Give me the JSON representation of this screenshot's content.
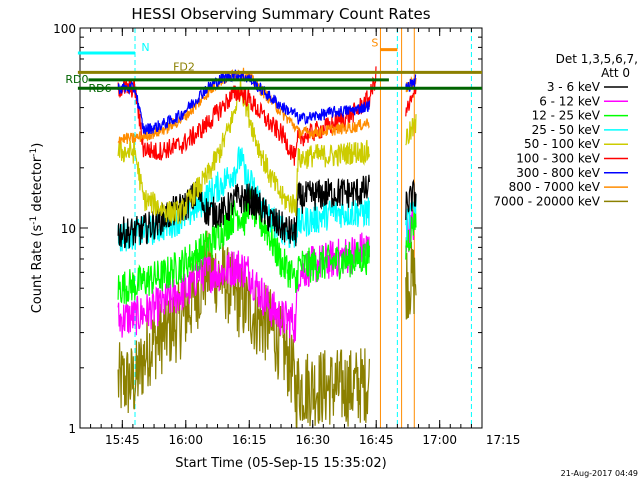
{
  "chart_data": {
    "type": "line",
    "title": "HESSI Observing Summary Count Rates",
    "xlabel": "Start Time (05-Sep-15 15:35:02)",
    "ylabel_main": "Count Rate (s",
    "ylabel_sup1": "-1",
    "ylabel_mid": " detector",
    "ylabel_sup2": "-1",
    "ylabel_end": ")",
    "ylog": true,
    "ylim": [
      1,
      100
    ],
    "xlim_minutes": [
      0,
      95
    ],
    "x_ticks": [
      {
        "label": "15:45",
        "min": 10
      },
      {
        "label": "16:00",
        "min": 25
      },
      {
        "label": "16:15",
        "min": 40
      },
      {
        "label": "16:30",
        "min": 55
      },
      {
        "label": "16:45",
        "min": 70
      },
      {
        "label": "17:00",
        "min": 85
      },
      {
        "label": "17:15",
        "min": 100
      }
    ],
    "y_ticks": [
      {
        "label": "1",
        "value": 1
      },
      {
        "label": "10",
        "value": 10
      },
      {
        "label": "100",
        "value": 100
      }
    ],
    "legend": {
      "header1": "Det 1,3,5,6,7,",
      "header2": "Att 0",
      "placement": "right",
      "entries": [
        {
          "name": "3 - 6 keV",
          "color": "#000000"
        },
        {
          "name": "6 - 12 keV",
          "color": "#ff00ff"
        },
        {
          "name": "12 - 25 keV",
          "color": "#00ff00"
        },
        {
          "name": "25 - 50 keV",
          "color": "#00ffff"
        },
        {
          "name": "50 - 100 keV",
          "color": "#cccc00"
        },
        {
          "name": "100 - 300 keV",
          "color": "#ff0000"
        },
        {
          "name": "300 - 800 keV",
          "color": "#0000ff"
        },
        {
          "name": "800 - 7000 keV",
          "color": "#ff8c00"
        },
        {
          "name": "7000 - 20000 keV",
          "color": "#8b8000"
        }
      ]
    },
    "flags": [
      {
        "label": "N",
        "color": "#00ffff",
        "x0": -0.5,
        "x1": 13,
        "value": 75
      },
      {
        "label": "FD2",
        "color": "#8b8000",
        "x0": -0.5,
        "x1": 95,
        "value": 60
      },
      {
        "label": "RD0",
        "color": "#006400",
        "x0": 2,
        "x1": 73,
        "value": 55
      },
      {
        "label": "RD6",
        "color": "#006400",
        "x0": -0.5,
        "x1": 95,
        "value": 50
      },
      {
        "label": "S",
        "color": "#ff8c00",
        "x0": 71,
        "x1": 75,
        "value": 78
      }
    ],
    "series": [
      {
        "name": "3 - 6 keV",
        "color": "#000000",
        "seg1": [
          [
            9,
            9.5
          ],
          [
            13,
            9.5
          ],
          [
            16,
            10
          ],
          [
            19,
            11
          ],
          [
            22,
            12
          ],
          [
            25,
            13
          ],
          [
            28,
            15
          ],
          [
            30,
            12
          ],
          [
            34,
            12
          ],
          [
            37,
            14
          ],
          [
            40,
            14
          ],
          [
            42,
            13
          ],
          [
            45,
            11
          ],
          [
            48,
            10
          ],
          [
            50,
            9.5
          ],
          [
            51,
            9.5
          ],
          [
            51.5,
            14
          ],
          [
            55,
            14.5
          ],
          [
            60,
            15
          ],
          [
            65,
            15
          ],
          [
            68.5,
            15.5
          ]
        ],
        "seg2": [
          [
            77,
            13
          ],
          [
            79.5,
            15
          ]
        ],
        "noise": 0.08
      },
      {
        "name": "6 - 12 keV",
        "color": "#ff00ff",
        "seg1": [
          [
            9,
            3.5
          ],
          [
            13,
            3.6
          ],
          [
            18,
            4
          ],
          [
            22,
            4.5
          ],
          [
            26,
            5
          ],
          [
            28,
            6
          ],
          [
            30,
            6
          ],
          [
            34,
            6
          ],
          [
            37,
            6.5
          ],
          [
            40,
            6
          ],
          [
            42,
            5
          ],
          [
            45,
            4
          ],
          [
            48,
            3.5
          ],
          [
            50,
            3.5
          ],
          [
            51,
            3.2
          ],
          [
            51.5,
            6
          ],
          [
            55,
            6.5
          ],
          [
            60,
            7
          ],
          [
            65,
            7.5
          ],
          [
            68.5,
            8
          ]
        ],
        "seg2": [
          [
            77,
            9
          ],
          [
            79.5,
            11
          ]
        ],
        "noise": 0.1
      },
      {
        "name": "12 - 25 keV",
        "color": "#00ff00",
        "seg1": [
          [
            9,
            5
          ],
          [
            13,
            5.2
          ],
          [
            16,
            5.5
          ],
          [
            20,
            5.8
          ],
          [
            24,
            6.5
          ],
          [
            28,
            7.5
          ],
          [
            31,
            8.5
          ],
          [
            34,
            10
          ],
          [
            37,
            12
          ],
          [
            39,
            11
          ],
          [
            40,
            14
          ],
          [
            42,
            11
          ],
          [
            44,
            10
          ],
          [
            46,
            8
          ],
          [
            48,
            6.5
          ],
          [
            50,
            6
          ],
          [
            51,
            5
          ],
          [
            51.5,
            6.5
          ],
          [
            55,
            6.5
          ],
          [
            60,
            6.8
          ],
          [
            65,
            7
          ],
          [
            68.5,
            7.2
          ]
        ],
        "seg2": [
          [
            77,
            8
          ],
          [
            79.5,
            12
          ]
        ],
        "noise": 0.09
      },
      {
        "name": "25 - 50 keV",
        "color": "#00ffff",
        "seg1": [
          [
            9,
            9
          ],
          [
            13,
            9.3
          ],
          [
            17,
            9.8
          ],
          [
            21,
            10.5
          ],
          [
            25,
            11.5
          ],
          [
            28,
            13
          ],
          [
            31,
            15
          ],
          [
            34,
            17
          ],
          [
            37,
            20
          ],
          [
            38,
            23
          ],
          [
            39,
            18
          ],
          [
            41,
            16
          ],
          [
            43,
            13
          ],
          [
            45,
            11
          ],
          [
            48,
            10
          ],
          [
            50,
            9
          ],
          [
            51,
            9.5
          ],
          [
            51.5,
            10.5
          ],
          [
            55,
            11
          ],
          [
            60,
            12
          ],
          [
            65,
            12
          ],
          [
            68.5,
            12
          ]
        ],
        "seg2": [
          [
            77,
            10
          ],
          [
            79.5,
            14
          ]
        ],
        "noise": 0.08
      },
      {
        "name": "50 - 100 keV",
        "color": "#cccc00",
        "seg1": [
          [
            9,
            24
          ],
          [
            13,
            24
          ],
          [
            15,
            14
          ],
          [
            18,
            13
          ],
          [
            21,
            12
          ],
          [
            24,
            12
          ],
          [
            27,
            15
          ],
          [
            30,
            18
          ],
          [
            33,
            24
          ],
          [
            36,
            35
          ],
          [
            38,
            52
          ],
          [
            40,
            36
          ],
          [
            42,
            26
          ],
          [
            45,
            18
          ],
          [
            48,
            14
          ],
          [
            51,
            13
          ],
          [
            51.5,
            22
          ],
          [
            55,
            23
          ],
          [
            60,
            23
          ],
          [
            65,
            24
          ],
          [
            68.5,
            24
          ]
        ],
        "seg2": [
          [
            77,
            28
          ],
          [
            79.5,
            33
          ]
        ],
        "noise": 0.06
      },
      {
        "name": "100 - 300 keV",
        "color": "#ff0000",
        "seg1": [
          [
            9,
            50
          ],
          [
            13,
            50
          ],
          [
            15,
            25
          ],
          [
            18,
            24
          ],
          [
            21,
            25
          ],
          [
            24,
            26
          ],
          [
            27,
            29
          ],
          [
            30,
            33
          ],
          [
            33,
            39
          ],
          [
            36,
            46
          ],
          [
            38,
            48
          ],
          [
            40,
            44
          ],
          [
            42,
            39
          ],
          [
            45,
            33
          ],
          [
            48,
            29
          ],
          [
            50,
            24
          ],
          [
            51,
            22
          ],
          [
            51.5,
            28
          ],
          [
            55,
            30
          ],
          [
            60,
            33
          ],
          [
            65,
            38
          ],
          [
            68.5,
            45
          ],
          [
            70,
            58
          ]
        ],
        "seg2": [
          [
            77,
            38
          ],
          [
            79.5,
            48
          ]
        ],
        "noise": 0.05
      },
      {
        "name": "300 - 800 keV",
        "color": "#0000ff",
        "seg1": [
          [
            9,
            50
          ],
          [
            13,
            50
          ],
          [
            15,
            31
          ],
          [
            18,
            32
          ],
          [
            21,
            34
          ],
          [
            24,
            37
          ],
          [
            27,
            43
          ],
          [
            30,
            50
          ],
          [
            33,
            55
          ],
          [
            36,
            58
          ],
          [
            38,
            58
          ],
          [
            40,
            56
          ],
          [
            42,
            51
          ],
          [
            45,
            45
          ],
          [
            48,
            40
          ],
          [
            51,
            37
          ],
          [
            51.5,
            35
          ],
          [
            55,
            36
          ],
          [
            60,
            38
          ],
          [
            65,
            39
          ],
          [
            68.5,
            41
          ]
        ],
        "seg2": [
          [
            77,
            50
          ],
          [
            79.5,
            55
          ]
        ],
        "noise": 0.03
      },
      {
        "name": "800 - 7000 keV",
        "color": "#ff8c00",
        "seg1": [
          [
            9,
            28
          ],
          [
            13,
            28
          ],
          [
            15,
            29
          ],
          [
            18,
            30
          ],
          [
            21,
            32
          ],
          [
            24,
            35
          ],
          [
            27,
            40
          ],
          [
            30,
            47
          ],
          [
            33,
            54
          ],
          [
            36,
            58
          ],
          [
            38,
            60
          ],
          [
            40,
            57
          ],
          [
            42,
            51
          ],
          [
            45,
            44
          ],
          [
            48,
            37
          ],
          [
            51,
            32
          ],
          [
            51.5,
            30
          ],
          [
            55,
            30
          ],
          [
            60,
            31
          ],
          [
            65,
            32
          ],
          [
            68.5,
            34
          ]
        ],
        "seg2": [
          [
            77,
            50
          ],
          [
            79.5,
            55
          ]
        ],
        "noise": 0.03
      },
      {
        "name": "7000 - 20000 keV",
        "color": "#8b8000",
        "seg1": [
          [
            9,
            1.7
          ],
          [
            13,
            1.7
          ],
          [
            16,
            2.5
          ],
          [
            20,
            3
          ],
          [
            24,
            3.5
          ],
          [
            27,
            4.5
          ],
          [
            30,
            6.2
          ],
          [
            34,
            5.5
          ],
          [
            37,
            4.5
          ],
          [
            40,
            4
          ],
          [
            42,
            3.5
          ],
          [
            45,
            3.2
          ],
          [
            48,
            2.5
          ],
          [
            50,
            2
          ],
          [
            51,
            1.5
          ],
          [
            51.5,
            1.6
          ],
          [
            55,
            1.6
          ],
          [
            60,
            1.6
          ],
          [
            65,
            1.6
          ],
          [
            68.5,
            1.7
          ]
        ],
        "seg2": [
          [
            77,
            5.5
          ],
          [
            79.5,
            5.5
          ]
        ],
        "noise": 0.2
      }
    ],
    "night_lines": [
      {
        "min": -0.5,
        "color": "#00ffff"
      },
      {
        "min": 13,
        "color": "#00ffff"
      },
      {
        "min": 75,
        "color": "#00ffff"
      },
      {
        "min": 92.5,
        "color": "#00ffff"
      }
    ],
    "saa_lines": [
      {
        "min": 71,
        "color": "#ff8c00"
      },
      {
        "min": 79,
        "color": "#ff8c00"
      }
    ],
    "attenuator_lines": [
      {
        "min": 76,
        "color": "#ff8c00"
      }
    ]
  },
  "footer_date": "21-Aug-2017 04:49"
}
